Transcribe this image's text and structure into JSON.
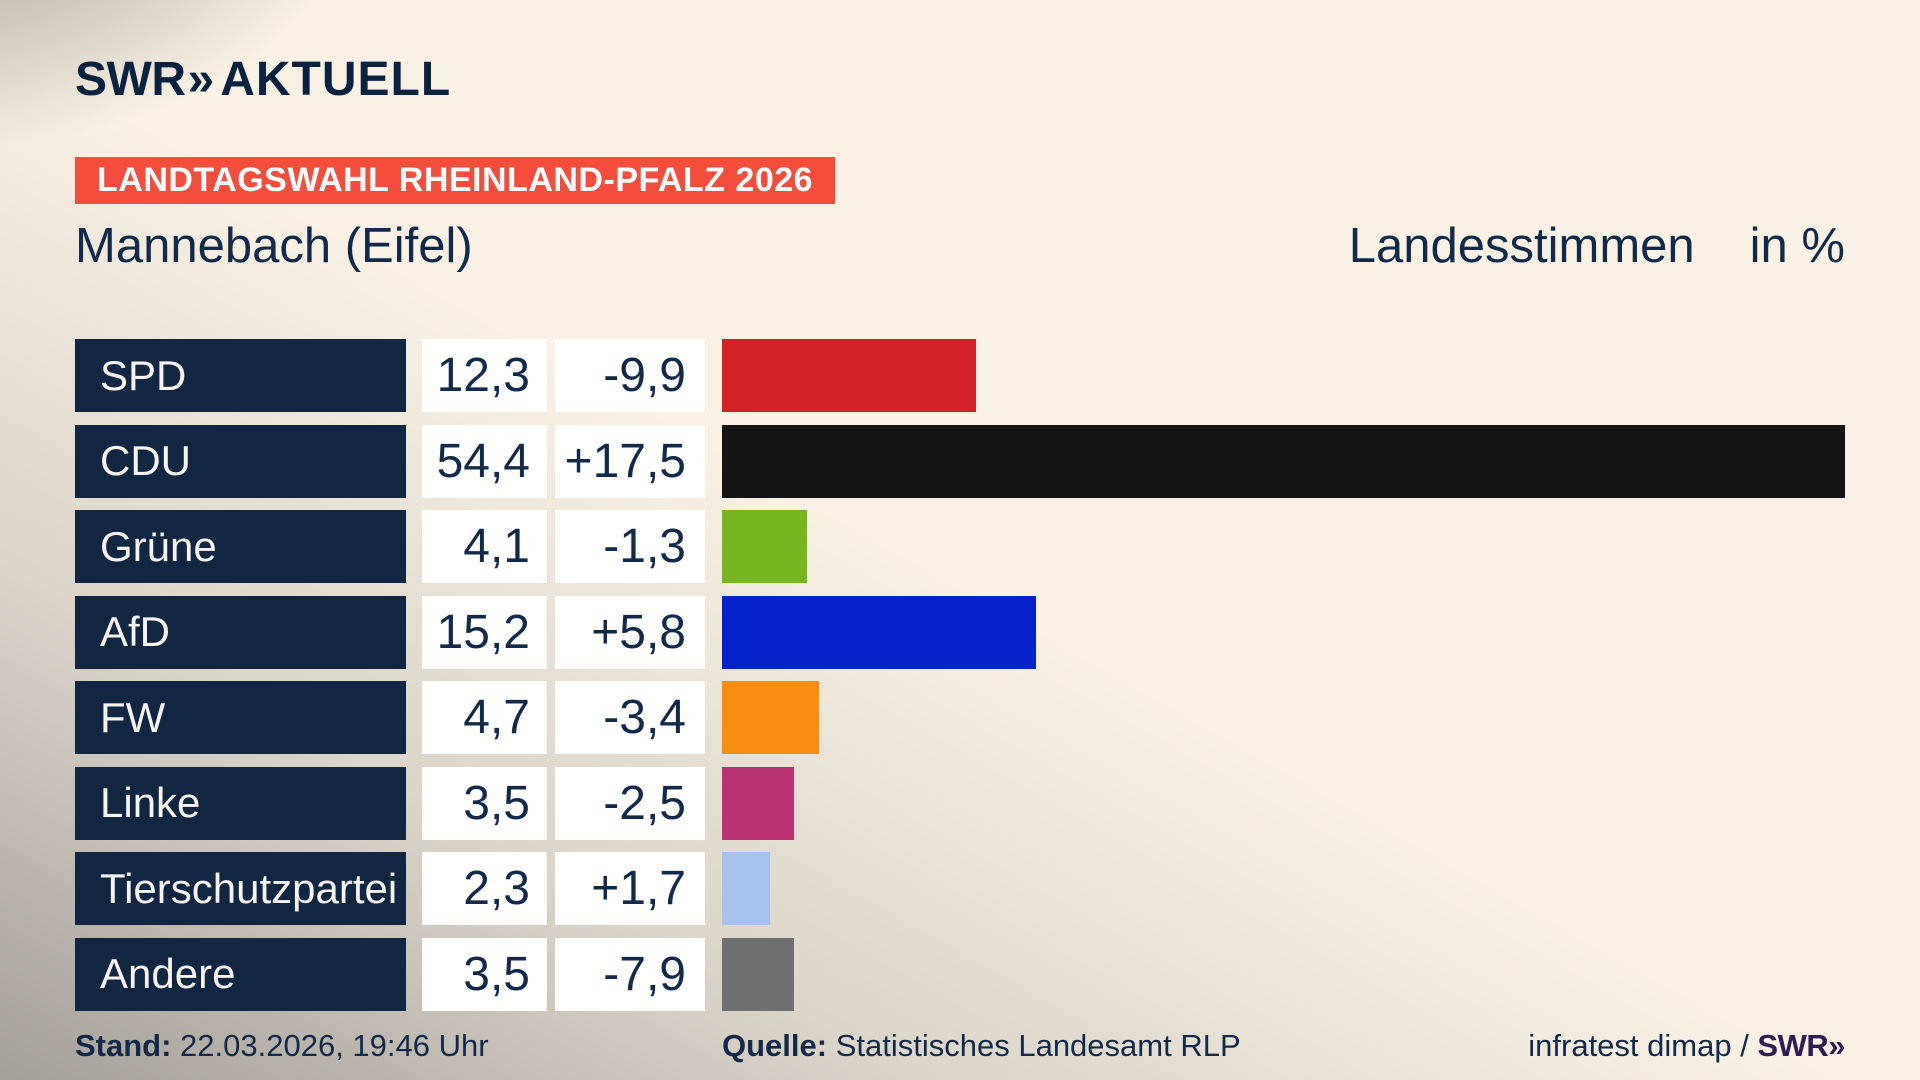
{
  "brand": {
    "logo_main": "SWR",
    "logo_chevron": "»",
    "logo_suffix": "AKTUELL"
  },
  "badge": {
    "text": "LANDTAGSWAHL RHEINLAND-PFALZ 2026",
    "bg": "#f44d3c"
  },
  "header": {
    "title": "Mannebach (Eifel)",
    "measure": "Landesstimmen",
    "unit": "in %"
  },
  "chart_data": {
    "type": "bar",
    "orientation": "horizontal",
    "title": "Landtagswahl Rheinland-Pfalz 2026 — Mannebach (Eifel)",
    "ylabel": "Landesstimmen in %",
    "categories": [
      "SPD",
      "CDU",
      "Grüne",
      "AfD",
      "FW",
      "Linke",
      "Tierschutzpartei",
      "Andere"
    ],
    "values": [
      12.3,
      54.4,
      4.1,
      15.2,
      4.7,
      3.5,
      2.3,
      3.5
    ],
    "changes": [
      -9.9,
      17.5,
      -1.3,
      5.8,
      -3.4,
      -2.5,
      1.7,
      -7.9
    ],
    "colors": [
      "#d32226",
      "#141414",
      "#74b71e",
      "#0322cc",
      "#f98d14",
      "#b93374",
      "#a6c3ee",
      "#6e7072"
    ],
    "xlim": [
      0,
      54.4
    ],
    "grid": false,
    "legend": false
  },
  "rows": [
    {
      "party": "SPD",
      "value": "12,3",
      "change": "-9,9",
      "pct": 12.3,
      "color": "#d32226"
    },
    {
      "party": "CDU",
      "value": "54,4",
      "change": "+17,5",
      "pct": 54.4,
      "color": "#141414"
    },
    {
      "party": "Grüne",
      "value": "4,1",
      "change": "-1,3",
      "pct": 4.1,
      "color": "#74b71e"
    },
    {
      "party": "AfD",
      "value": "15,2",
      "change": "+5,8",
      "pct": 15.2,
      "color": "#0322cc"
    },
    {
      "party": "FW",
      "value": "4,7",
      "change": "-3,4",
      "pct": 4.7,
      "color": "#f98d14"
    },
    {
      "party": "Linke",
      "value": "3,5",
      "change": "-2,5",
      "pct": 3.5,
      "color": "#b93374"
    },
    {
      "party": "Tierschutzpartei",
      "value": "2,3",
      "change": "+1,7",
      "pct": 2.3,
      "color": "#a6c3ee"
    },
    {
      "party": "Andere",
      "value": "3,5",
      "change": "-7,9",
      "pct": 3.5,
      "color": "#6e7072"
    }
  ],
  "footer": {
    "stand_label": "Stand:",
    "stand_value": " 22.03.2026, 19:46 Uhr",
    "quelle_label": "Quelle:",
    "quelle_value": " Statistisches Landesamt RLP",
    "credit_text": "infratest dimap / ",
    "credit_swr": "SWR»"
  }
}
